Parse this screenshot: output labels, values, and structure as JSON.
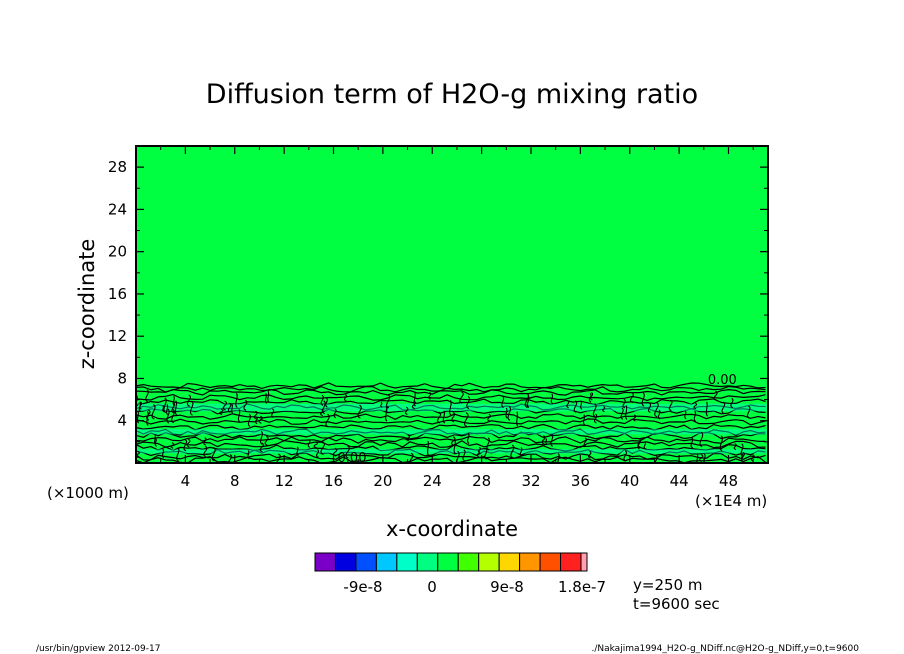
{
  "chart_data": {
    "type": "heatmap",
    "title": "Diffusion term of H2O-g mixing ratio",
    "xlabel": "x-coordinate",
    "ylabel": "z-coordinate",
    "x_unit_left": "(×1000 m)",
    "x_unit_right": "(×1E4 m)",
    "xlim": [
      0,
      51.2
    ],
    "ylim": [
      0,
      30
    ],
    "x_ticks": [
      4,
      8,
      12,
      16,
      20,
      24,
      28,
      32,
      36,
      40,
      44,
      48
    ],
    "y_ticks": [
      4,
      8,
      12,
      16,
      20,
      24,
      28
    ],
    "background_color": "#00ff40",
    "contour_labels": [
      {
        "text": "0.00",
        "x": 47.5,
        "y": 7.5
      },
      {
        "text": "0.00",
        "x": 17.5,
        "y": 0.1
      }
    ],
    "colorbar": {
      "colors": [
        "#7a00c8",
        "#0000e0",
        "#0050ff",
        "#00c8ff",
        "#00ffc8",
        "#00ff80",
        "#00ff40",
        "#40ff00",
        "#b4ff00",
        "#ffd700",
        "#ff9600",
        "#ff5000",
        "#ff2020"
      ],
      "tick_labels": [
        "-9e-8",
        "0",
        "9e-8",
        "1.8e-7"
      ]
    },
    "annotations": {
      "y_value": "y=250 m",
      "t_value": "t=9600 sec"
    },
    "footer_left": "/usr/bin/gpview  2012-09-17",
    "footer_right": "./Nakajima1994_H2O-g_NDiff.nc@H2O-g_NDiff,y=0,t=9600"
  }
}
